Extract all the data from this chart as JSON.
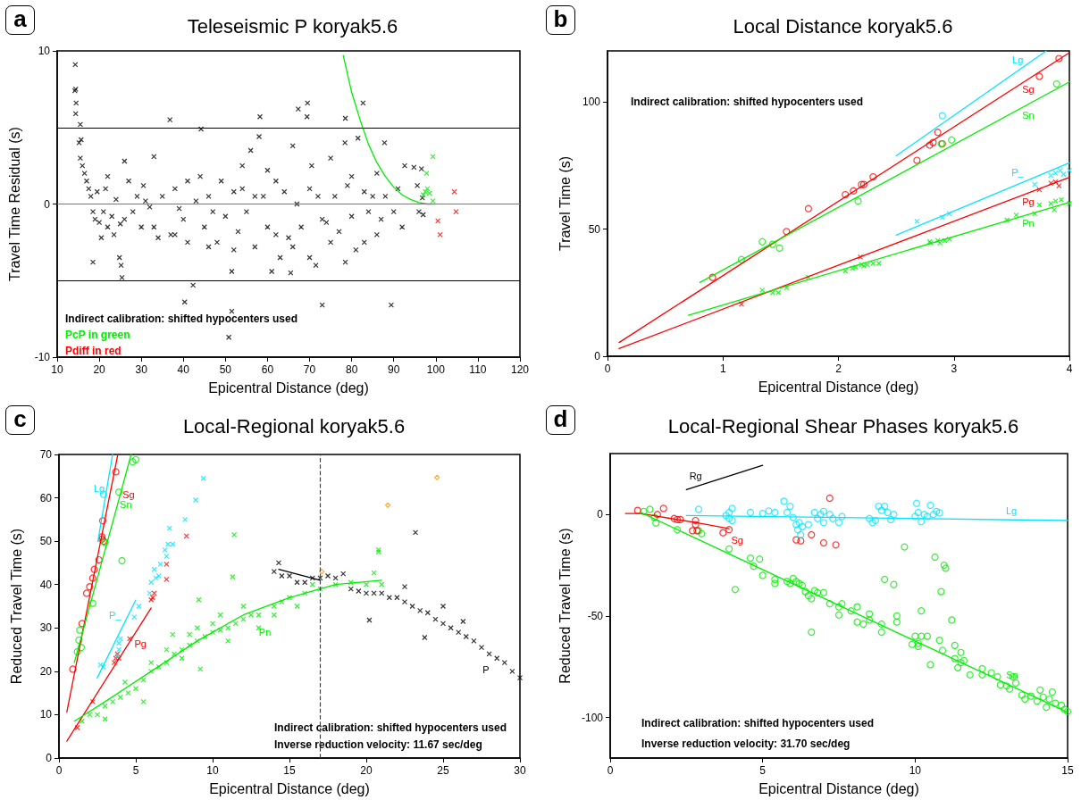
{
  "chart_data": [
    {
      "type": "scatter",
      "title": "Teleseismic P koryak5.6",
      "xlabel": "Epicentral Distance (deg)",
      "ylabel": "Travel Time Residual (s)",
      "xlim": [
        10,
        120
      ],
      "xticks": [
        10,
        20,
        30,
        40,
        50,
        60,
        70,
        80,
        90,
        100,
        110,
        120
      ],
      "ylim": [
        -10,
        10
      ],
      "yticks": [
        -10,
        0,
        10
      ],
      "annotations": [
        "a",
        "Indirect calibration: shifted hypocenters used",
        "PcP in green",
        "Pdiff in red"
      ],
      "ref_lines": [
        {
          "axis": "y",
          "value": 5,
          "color": "#000000"
        },
        {
          "axis": "y",
          "value": 0,
          "color": "#777777"
        },
        {
          "axis": "y",
          "value": -5,
          "color": "#000000"
        }
      ],
      "series": [
        {
          "type": "scatter",
          "marker": "cross",
          "color": "#000000",
          "x": [
            14.3,
            14.2,
            14.4,
            14.5,
            14.4,
            15.5,
            15.7,
            15.2,
            15.5,
            16,
            16.5,
            17,
            17.5,
            18,
            18.5,
            19,
            18.5,
            20,
            21,
            22,
            22,
            23,
            24,
            25,
            25.4,
            25.2,
            24.8,
            26,
            26,
            28,
            29,
            30,
            31,
            32,
            33,
            33,
            35,
            36.8,
            37,
            38,
            39,
            40,
            40.3,
            41,
            42.3,
            43,
            44.2,
            45,
            46,
            47,
            48,
            49,
            50,
            50.8,
            51.5,
            51.5,
            52,
            53,
            54,
            55,
            56,
            57,
            58.2,
            58,
            59,
            60,
            61,
            62,
            63,
            64,
            65,
            65.5,
            66,
            67,
            67.3,
            68,
            69.5,
            69.4,
            70,
            70.5,
            71.5,
            72,
            73,
            74,
            75,
            76,
            77,
            78.5,
            78.5,
            78.4,
            79,
            80,
            81,
            81.5,
            82.7,
            83,
            84,
            85,
            86,
            87,
            87.8,
            88,
            89.4,
            90,
            91,
            92,
            92.6,
            94.8,
            95.6,
            96,
            96.6,
            96.8,
            97,
            19.5,
            20.5,
            21.5,
            23.5,
            27,
            30.5,
            34,
            38,
            41,
            44,
            46,
            52,
            54,
            57,
            60,
            62,
            66,
            70,
            73,
            75,
            80,
            83,
            86
          ],
          "values": [
            9.1,
            7.4,
            7.5,
            6.6,
            5.9,
            5.2,
            4.2,
            4.0,
            3.0,
            2.5,
            2.0,
            1.5,
            1.0,
            0.5,
            -0.5,
            -1,
            -3.8,
            -1.2,
            -0.5,
            -1.5,
            1.8,
            -0.8,
            0.3,
            -1.3,
            -4.8,
            -4.0,
            -3.5,
            2.8,
            -1,
            -0.5,
            0.5,
            -1.5,
            0.2,
            -0.2,
            -1.5,
            3.1,
            0.5,
            5.5,
            -2,
            1,
            -0.3,
            -1,
            -6.4,
            1.5,
            -5.3,
            0.2,
            4.9,
            -1.5,
            0.5,
            -0.5,
            -2.5,
            1.5,
            -0.8,
            -8.7,
            -7.0,
            -4.4,
            0.8,
            -1.8,
            2.5,
            -0.5,
            3.5,
            -2.8,
            5.7,
            4.4,
            0.5,
            -1.5,
            -4.4,
            1.5,
            -3.5,
            0.8,
            -2.2,
            -4.5,
            3.8,
            0,
            6.2,
            -1.5,
            6.6,
            5.7,
            -3.5,
            2.5,
            -4.0,
            0.5,
            -6.6,
            -1.2,
            3.0,
            0.5,
            -1.8,
            5.6,
            -3.8,
            4.0,
            1.2,
            -0.8,
            -3,
            4.3,
            6.6,
            0.8,
            -0.5,
            0.5,
            -2.0,
            -1,
            4.0,
            0.5,
            -6.6,
            -0.5,
            1.0,
            -1.5,
            2.5,
            2.4,
            1.2,
            -0.5,
            2.3,
            0.4,
            -0.7,
            0.8,
            -2.2,
            1,
            -2,
            1.5,
            1.2,
            -2.2,
            -2,
            -2.5,
            1.8,
            -2.8,
            -3,
            1,
            0.5,
            2.2,
            -2,
            -2.8,
            1,
            -1,
            -2.5,
            1.8,
            -2.5,
            2
          ]
        },
        {
          "type": "scatter",
          "marker": "cross",
          "color": "#00ee00",
          "x": [
            97,
            97.5,
            98,
            97.8,
            98.5,
            99.3,
            99.3
          ],
          "values": [
            0.6,
            0.8,
            1.0,
            2.0,
            0.7,
            0.2,
            3.1
          ]
        },
        {
          "type": "scatter",
          "marker": "cross",
          "color": "#ff0000",
          "x": [
            100.5,
            101,
            104.4,
            104.8
          ],
          "values": [
            -1.1,
            -2.0,
            0.8,
            -0.5
          ]
        },
        {
          "type": "line",
          "marker": "none",
          "color": "#00ee00",
          "x": [
            78,
            80,
            82,
            84,
            86,
            88,
            90,
            92,
            94,
            96,
            98,
            99
          ],
          "values": [
            9.7,
            7.3,
            5.5,
            3.9,
            2.7,
            1.8,
            1.1,
            0.6,
            0.3,
            0.1,
            0,
            0
          ]
        }
      ]
    },
    {
      "type": "scatter",
      "title": "Local Distance koryak5.6",
      "xlabel": "Epicentral Distance (deg)",
      "ylabel": "Travel Time (s)",
      "xlim": [
        0,
        4
      ],
      "xticks": [
        0,
        1,
        2,
        3,
        4
      ],
      "ylim": [
        0,
        120
      ],
      "yticks": [
        0,
        50,
        100
      ],
      "annotations": [
        "b",
        "Indirect calibration: shifted hypocenters used"
      ],
      "series": [
        {
          "type": "scatter",
          "marker": "circle",
          "color": "#ff0000",
          "x": [
            0.91,
            1.55,
            1.74,
            2.06,
            2.13,
            2.2,
            2.22,
            2.3,
            2.68,
            2.79,
            2.82,
            2.86,
            2.9,
            3.74,
            3.91
          ],
          "values": [
            31,
            49,
            58,
            63.5,
            65,
            67.5,
            67.5,
            70.5,
            77,
            83,
            84,
            88,
            83.5,
            110,
            117
          ]
        },
        {
          "type": "scatter",
          "marker": "circle",
          "color": "#00ee00",
          "x": [
            1.16,
            1.34,
            1.43,
            1.49,
            2.17,
            2.89,
            2.98,
            3.89
          ],
          "values": [
            38,
            45,
            44,
            42.5,
            61,
            83.5,
            85,
            107
          ]
        },
        {
          "type": "scatter",
          "marker": "circle",
          "color": "#00e5ff",
          "x": [
            2.9
          ],
          "values": [
            94.5
          ]
        },
        {
          "type": "scatter",
          "marker": "cross",
          "color": "#00ee00",
          "x": [
            1.34,
            1.43,
            1.48,
            1.55,
            1.74,
            2.06,
            2.12,
            2.15,
            2.2,
            2.22,
            2.25,
            2.3,
            2.35,
            2.79,
            2.8,
            2.86,
            2.88,
            2.92,
            2.96,
            3.46,
            3.54,
            3.7,
            3.74,
            3.84,
            3.87,
            3.88,
            3.93,
            4.0
          ],
          "values": [
            26,
            25,
            25,
            27,
            31,
            33.5,
            34.5,
            35,
            36,
            35.5,
            36,
            36.5,
            36.5,
            45,
            44.5,
            45.5,
            44.5,
            45.5,
            46,
            53.5,
            55.5,
            56,
            59.5,
            60,
            57.5,
            61,
            61.5,
            60
          ]
        },
        {
          "type": "scatter",
          "marker": "cross",
          "color": "#ff0000",
          "x": [
            1.16,
            2.19,
            3.74,
            3.84,
            3.88,
            3.91
          ],
          "values": [
            20.5,
            39,
            65.5,
            68,
            68.5,
            67
          ]
        },
        {
          "type": "scatter",
          "marker": "cross",
          "color": "#00e5ff",
          "x": [
            2.68,
            2.9,
            2.96,
            3.7,
            3.84,
            3.88,
            3.92,
            3.95,
            4.0
          ],
          "values": [
            53,
            54.5,
            56,
            67.5,
            71,
            72,
            73,
            71.5,
            73
          ]
        },
        {
          "type": "line",
          "marker": "none",
          "name": "Lg",
          "color": "#00e5ff",
          "x": [
            2.5,
            3.8
          ],
          "values": [
            78.8,
            120
          ]
        },
        {
          "type": "line",
          "marker": "none",
          "name": "Sg",
          "color": "#ff0000",
          "x": [
            0.1,
            4
          ],
          "values": [
            5.4,
            119.3
          ]
        },
        {
          "type": "line",
          "marker": "none",
          "name": "Sn",
          "color": "#00ee00",
          "x": [
            0.8,
            4
          ],
          "values": [
            29,
            107.8
          ]
        },
        {
          "type": "line",
          "marker": "none",
          "name": "P_",
          "color": "#00e5ff",
          "x": [
            2.5,
            4
          ],
          "values": [
            47.6,
            76
          ]
        },
        {
          "type": "line",
          "marker": "none",
          "name": "Pg",
          "color": "#ff0000",
          "x": [
            0.1,
            4
          ],
          "values": [
            3,
            70.3
          ]
        },
        {
          "type": "line",
          "marker": "none",
          "name": "Pn",
          "color": "#00ee00",
          "x": [
            0.7,
            4
          ],
          "values": [
            16.1,
            60.5
          ]
        }
      ]
    },
    {
      "type": "scatter",
      "title": "Local-Regional koryak5.6",
      "xlabel": "Epicentral Distance (deg)",
      "ylabel": "Reduced Travel Time (s)",
      "xlim": [
        0,
        30
      ],
      "xticks": [
        0,
        5,
        10,
        15,
        20,
        25,
        30
      ],
      "ylim": [
        0,
        70
      ],
      "yticks": [
        0,
        10,
        20,
        30,
        40,
        50,
        60,
        70
      ],
      "annotations": [
        "c",
        "Indirect calibration: shifted hypocenters used",
        "Inverse reduction velocity: 11.67 sec/deg"
      ],
      "ref_lines": [
        {
          "axis": "x",
          "value": 17,
          "color": "#444444",
          "line_style": "dashed"
        }
      ],
      "series": [
        {
          "type": "scatter",
          "marker": "circle",
          "color": "#ff0000",
          "x": [
            0.9,
            1.5,
            2.0,
            1.8,
            2.2,
            2.3,
            2.6,
            2.8,
            2.85,
            2.8,
            2.9,
            3.7
          ],
          "values": [
            20.5,
            31,
            39.5,
            38,
            41.5,
            43.5,
            45.7,
            50.5,
            54.7,
            51,
            50,
            66
          ]
        },
        {
          "type": "scatter",
          "marker": "circle",
          "color": "#00ee00",
          "x": [
            1.2,
            1.3,
            1.35,
            1.45,
            2.2,
            3.0,
            3.9,
            4.1,
            4.8,
            5.0
          ],
          "values": [
            24.5,
            27.2,
            29.5,
            25.5,
            35.7,
            49.7,
            61.3,
            45.5,
            68.3,
            68.8
          ]
        },
        {
          "type": "scatter",
          "marker": "circle",
          "color": "#00e5ff",
          "x": [
            2.9
          ],
          "values": [
            60.8
          ]
        },
        {
          "type": "scatter",
          "marker": "cross",
          "color": "#ff0000",
          "x": [
            1.2,
            2.2,
            3.6,
            3.7,
            3.8,
            3.9,
            4.6,
            6.0,
            6.1,
            6.2,
            7.0,
            7.0,
            8.3
          ],
          "values": [
            7,
            13,
            22,
            23,
            24,
            23,
            27.5,
            36.5,
            37,
            38,
            41.2,
            44.7,
            51.2
          ]
        },
        {
          "type": "scatter",
          "marker": "cross",
          "color": "#00e5ff",
          "x": [
            2.7,
            2.9,
            3.8,
            3.9,
            3.9,
            4.0,
            4.9,
            5.2,
            5.9,
            6.0,
            6.3,
            6.2,
            6.5,
            6.6,
            7.0,
            6.9,
            7.1,
            7.4,
            7.2,
            8.2,
            8.9,
            9.4
          ],
          "values": [
            21.5,
            21,
            23.5,
            25,
            26.5,
            27.5,
            32.5,
            35,
            38,
            40.5,
            41.5,
            43.5,
            42,
            44.7,
            46.5,
            48,
            49.3,
            49.3,
            53,
            55,
            59.5,
            64.5
          ]
        },
        {
          "type": "scatter",
          "marker": "cross",
          "name": "Pn",
          "color": "#00ee00",
          "x": [
            11.4,
            11.3,
            9.1,
            9.2,
            7.4,
            20.8,
            20.8,
            20.5,
            1.5,
            2,
            2.5,
            3,
            3.5,
            4,
            4.5,
            5,
            5.5,
            6,
            6.5,
            7,
            7.5,
            8,
            8.5,
            9,
            9.5,
            10,
            10.5,
            11,
            11.5,
            12,
            12.5,
            14,
            14.5,
            15,
            16,
            17,
            18,
            19,
            20,
            21,
            6,
            7,
            8,
            9,
            10,
            11,
            12,
            13,
            14,
            15.5,
            16.5,
            4.3,
            3,
            5.5,
            8.5,
            10.5,
            13
          ],
          "values": [
            51.5,
            41.8,
            36.5,
            20.5,
            28.5,
            47.5,
            48,
            42.7,
            8.5,
            10,
            10,
            12,
            13,
            14,
            15,
            16,
            18,
            20,
            21,
            22,
            24,
            25,
            26,
            27,
            28,
            29,
            29.5,
            30,
            31,
            32,
            33,
            35,
            36,
            37,
            38,
            39,
            40,
            40.5,
            40,
            40,
            22,
            25,
            23,
            30,
            31,
            27,
            35,
            30,
            33,
            35,
            40,
            17.5,
            9,
            13,
            28.5,
            33,
            33
          ]
        },
        {
          "type": "scatter",
          "marker": "cross",
          "name": "P",
          "color": "#000000",
          "x": [
            14,
            14.3,
            14.5,
            15,
            15.5,
            16,
            16.5,
            17,
            17.5,
            18,
            18.5,
            19,
            19.5,
            20,
            20.5,
            21,
            21.5,
            22,
            22.5,
            23,
            23.5,
            24,
            24.5,
            25,
            25.5,
            26,
            26.5,
            27,
            27.5,
            28,
            28.5,
            29,
            29.5,
            20.2,
            23.2,
            23.8,
            26.3,
            22.5,
            25,
            30
          ],
          "values": [
            43,
            45,
            42,
            42,
            40.5,
            40.5,
            41.5,
            41.5,
            42,
            41.5,
            42.5,
            39,
            38.5,
            38,
            38,
            38,
            37,
            37,
            36,
            35,
            34,
            33.5,
            32,
            31,
            30,
            29,
            28,
            27,
            25.5,
            24,
            23,
            22,
            20,
            31.8,
            52,
            27.8,
            31.5,
            39.5,
            35,
            18.5
          ]
        },
        {
          "type": "scatter",
          "marker": "diamond",
          "color": "#ff9900",
          "x": [
            21.4,
            24.6,
            17.1
          ],
          "values": [
            58.3,
            64.7,
            43
          ]
        },
        {
          "type": "line",
          "marker": "none",
          "name": "Lg",
          "color": "#00e5ff",
          "x": [
            2.53,
            3.49
          ],
          "values": [
            49.9,
            70
          ]
        },
        {
          "type": "line",
          "marker": "none",
          "name": "Sg",
          "color": "#ff0000",
          "x": [
            0.51,
            3.83
          ],
          "values": [
            10.6,
            70
          ]
        },
        {
          "type": "line",
          "marker": "none",
          "name": "Sn",
          "color": "#00ee00",
          "x": [
            1.0,
            4.7
          ],
          "values": [
            22,
            70
          ]
        },
        {
          "type": "line",
          "marker": "none",
          "name": "P_",
          "color": "#00e5ff",
          "x": [
            2.48,
            4.99
          ],
          "values": [
            18.4,
            36.4
          ]
        },
        {
          "type": "line",
          "marker": "none",
          "name": "Pg",
          "color": "#ff0000",
          "x": [
            0.51,
            6.0
          ],
          "values": [
            3.9,
            34.6
          ]
        },
        {
          "type": "line",
          "marker": "none",
          "color": "#00ee00",
          "x": [
            1.0,
            3,
            6,
            9,
            12,
            15,
            18,
            21
          ],
          "values": [
            8.5,
            13,
            20,
            27,
            33,
            37,
            40,
            41
          ]
        },
        {
          "type": "line",
          "marker": "none",
          "color": "#000000",
          "x": [
            14.3,
            17
          ],
          "values": [
            43.5,
            41
          ]
        }
      ]
    },
    {
      "type": "scatter",
      "title": "Local-Regional Shear Phases koryak5.6",
      "xlabel": "Epicentral Distance (deg)",
      "ylabel": "Reduced Travel Time (s)",
      "xlim": [
        0,
        15
      ],
      "xticks": [
        0,
        5,
        10,
        15
      ],
      "ylim": [
        -120,
        30
      ],
      "yticks": [
        -100,
        -50,
        0
      ],
      "annotations": [
        "d",
        "Indirect calibration: shifted hypocenters used",
        "Inverse reduction velocity: 31.70 sec/deg"
      ],
      "series": [
        {
          "type": "scatter",
          "marker": "circle",
          "color": "#00ee00",
          "x": [
            1.1,
            1.3,
            1.45,
            1.5,
            2.2,
            2.9,
            3.0,
            3.9,
            4.1,
            4.6,
            4.7,
            4.9,
            5.0,
            5.4,
            5.4,
            5.8,
            5.9,
            6.0,
            6.1,
            6.2,
            6.3,
            6.4,
            6.5,
            6.6,
            6.6,
            6.7,
            6.8,
            7.0,
            7.2,
            7.5,
            7.5,
            7.6,
            7.9,
            8.1,
            8.1,
            8.3,
            8.5,
            8.5,
            8.9,
            8.9,
            9.0,
            9.3,
            9.4,
            9.4,
            9.65,
            9.9,
            10.0,
            10.1,
            10.1,
            10.2,
            10.2,
            10.4,
            10.5,
            10.65,
            10.8,
            10.85,
            10.9,
            10.95,
            11.0,
            11.2,
            11.3,
            11.3,
            11.4,
            11.5,
            11.5,
            11.6,
            11.8,
            12.2,
            12.2,
            12.5,
            12.7,
            12.8,
            13.0,
            13.1,
            13.2,
            13.3,
            13.5,
            13.6,
            13.8,
            14.0,
            14.1,
            14.2,
            14.3,
            14.4,
            14.5,
            14.6,
            14.8,
            14.9,
            15.0
          ],
          "values": [
            1.5,
            2.5,
            -1.5,
            -4.2,
            -7.5,
            -8,
            -9.5,
            -17,
            -37,
            -21.5,
            -25.5,
            -22,
            -30,
            -32,
            -34,
            -33,
            -34,
            -31.5,
            -33,
            -34,
            -35,
            -38,
            -40,
            -41.5,
            -58,
            -37.5,
            -38.5,
            -38.5,
            -44,
            -45.5,
            -49.5,
            -44,
            -47.5,
            -45.5,
            -53,
            -54,
            -49,
            -52,
            -54,
            -58,
            -32,
            -34.5,
            -50,
            -53,
            -16,
            -64,
            -60,
            -65,
            -63.5,
            -60,
            -47.5,
            -60,
            -74,
            -21,
            -62,
            -38,
            -67,
            -25,
            -26.5,
            -52,
            -64.5,
            -71,
            -75.5,
            -73,
            -68,
            -72,
            -79,
            -76,
            -79,
            -78,
            -80,
            -84,
            -84.5,
            -86,
            -80,
            -83,
            -89,
            -91,
            -89.5,
            -92,
            -86.5,
            -90,
            -95,
            -91,
            -87.5,
            -93,
            -94,
            -96,
            -97
          ]
        },
        {
          "type": "scatter",
          "marker": "circle",
          "color": "#ff0000",
          "x": [
            0.9,
            1.55,
            1.75,
            2.1,
            2.2,
            2.3,
            2.8,
            2.8,
            2.7,
            2.85,
            3.7,
            3.9,
            6.1,
            6.25,
            6.6,
            7.0,
            7.2,
            7.4
          ],
          "values": [
            2,
            0,
            3,
            -2,
            -2.5,
            -2.5,
            -3,
            -5,
            -8,
            -8,
            -9,
            -7.5,
            -12.5,
            -13,
            -10,
            -14,
            8,
            -15
          ]
        },
        {
          "type": "scatter",
          "marker": "circle",
          "color": "#00e5ff",
          "x": [
            2.9,
            3.8,
            3.9,
            3.9,
            4.0,
            4.0,
            4.6,
            5.0,
            5.2,
            5.4,
            5.7,
            5.8,
            5.9,
            6.0,
            6.1,
            6.15,
            6.2,
            6.25,
            6.3,
            6.5,
            6.7,
            6.9,
            6.8,
            7.0,
            7.0,
            7.2,
            7.3,
            7.5,
            7.6,
            8.5,
            8.6,
            8.7,
            8.8,
            8.9,
            9.0,
            9.1,
            9.2,
            9.3,
            10.0,
            10.05,
            10.1,
            10.2,
            10.3,
            10.4,
            10.5,
            10.6,
            10.7,
            10.8
          ],
          "values": [
            2.5,
            -0.5,
            1,
            -2,
            3,
            -3,
            1,
            0.5,
            1.7,
            1,
            6.5,
            1,
            4,
            -1.5,
            -5,
            -7.5,
            -4,
            -10,
            -6,
            -5,
            1,
            0,
            -2,
            -4,
            1.5,
            0,
            -2,
            -4,
            -1,
            -2,
            -4,
            -3,
            4,
            2,
            4,
            1,
            -2.5,
            0,
            -1,
            5.5,
            1,
            -3.5,
            0,
            -1,
            4.5,
            0,
            1.5,
            0.8
          ]
        },
        {
          "type": "line",
          "marker": "none",
          "name": "Rg",
          "color": "#000000",
          "x": [
            2.5,
            5
          ],
          "values": [
            12.2,
            24.2
          ]
        },
        {
          "type": "line",
          "marker": "none",
          "name": "Sg",
          "color": "#ff0000",
          "x": [
            0.5,
            1.0,
            2,
            3,
            3.9
          ],
          "values": [
            0.5,
            0.5,
            -2,
            -4.5,
            -7
          ]
        },
        {
          "type": "line",
          "marker": "none",
          "name": "Lg",
          "color": "#00e5ff",
          "x": [
            2.5,
            15
          ],
          "values": [
            -0.5,
            -3
          ]
        },
        {
          "type": "line",
          "marker": "none",
          "name": "Sn",
          "color": "#00ee00",
          "x": [
            1.0,
            15
          ],
          "values": [
            1,
            -97.5
          ]
        }
      ]
    }
  ]
}
